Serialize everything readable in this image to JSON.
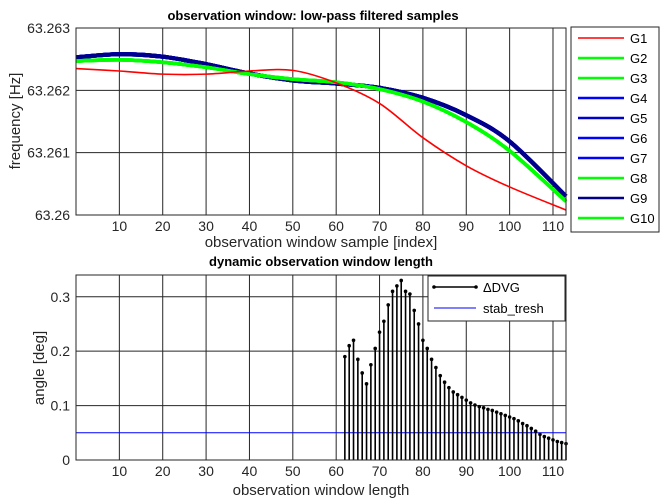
{
  "chart_data": [
    {
      "type": "line",
      "title": "observation window: low-pass filtered samples",
      "xlabel": "observation window sample [index]",
      "ylabel": "frequency [Hz]",
      "xlim": [
        0,
        113
      ],
      "ylim": [
        63.26,
        63.263
      ],
      "xticks": [
        10,
        20,
        30,
        40,
        50,
        60,
        70,
        80,
        90,
        100,
        110
      ],
      "yticks": [
        63.26,
        63.261,
        63.262,
        63.263
      ],
      "ytick_labels": [
        "63.26",
        "63.261",
        "63.262",
        "63.263"
      ],
      "grid": true,
      "legend_position": "outside-right",
      "series": [
        {
          "name": "G1",
          "color": "#ff0000",
          "x": [
            0,
            10,
            20,
            30,
            40,
            50,
            60,
            70,
            80,
            90,
            100,
            113
          ],
          "y": [
            63.26235,
            63.26231,
            63.26226,
            63.26226,
            63.26231,
            63.26232,
            63.26212,
            63.26179,
            63.26124,
            63.26079,
            63.26045,
            63.26008
          ]
        },
        {
          "name": "G2",
          "color": "#00ff00",
          "x": [
            0,
            10,
            20,
            30,
            40,
            50,
            60,
            70,
            80,
            90,
            100,
            113
          ],
          "y": [
            63.26247,
            63.26249,
            63.26245,
            63.26237,
            63.26226,
            63.26218,
            63.26213,
            63.26202,
            63.26182,
            63.26149,
            63.26103,
            63.26022
          ]
        },
        {
          "name": "G3",
          "color": "#00ff00",
          "x": [
            0,
            10,
            20,
            30,
            40,
            50,
            60,
            70,
            80,
            90,
            100,
            113
          ],
          "y": [
            63.26247,
            63.26249,
            63.26245,
            63.26237,
            63.26226,
            63.26218,
            63.26213,
            63.26202,
            63.26182,
            63.26149,
            63.26103,
            63.26022
          ]
        },
        {
          "name": "G4",
          "color": "#0000ff",
          "x": [
            0,
            10,
            20,
            30,
            40,
            50,
            60,
            70,
            80,
            90,
            100,
            113
          ],
          "y": [
            63.26253,
            63.26258,
            63.26254,
            63.26242,
            63.26227,
            63.26216,
            63.26211,
            63.26204,
            63.26188,
            63.2616,
            63.26118,
            63.2603
          ]
        },
        {
          "name": "G5",
          "color": "#0000cd",
          "x": [
            0,
            10,
            20,
            30,
            40,
            50,
            60,
            70,
            80,
            90,
            100,
            113
          ],
          "y": [
            63.26253,
            63.26258,
            63.26254,
            63.26242,
            63.26227,
            63.26216,
            63.26211,
            63.26204,
            63.26188,
            63.2616,
            63.26118,
            63.2603
          ]
        },
        {
          "name": "G6",
          "color": "#0000ff",
          "x": [
            0,
            10,
            20,
            30,
            40,
            50,
            60,
            70,
            80,
            90,
            100,
            113
          ],
          "y": [
            63.26253,
            63.26258,
            63.26254,
            63.26242,
            63.26227,
            63.26216,
            63.26211,
            63.26204,
            63.26188,
            63.2616,
            63.26118,
            63.2603
          ]
        },
        {
          "name": "G7",
          "color": "#0000ff",
          "x": [
            0,
            10,
            20,
            30,
            40,
            50,
            60,
            70,
            80,
            90,
            100,
            113
          ],
          "y": [
            63.26253,
            63.26258,
            63.26254,
            63.26242,
            63.26227,
            63.26216,
            63.26211,
            63.26204,
            63.26188,
            63.2616,
            63.26118,
            63.2603
          ]
        },
        {
          "name": "G8",
          "color": "#00ff00",
          "x": [
            0,
            10,
            20,
            30,
            40,
            50,
            60,
            70,
            80,
            90,
            100,
            113
          ],
          "y": [
            63.26247,
            63.26249,
            63.26245,
            63.26237,
            63.26226,
            63.26218,
            63.26213,
            63.26202,
            63.26182,
            63.26149,
            63.26103,
            63.26022
          ]
        },
        {
          "name": "G9",
          "color": "#00008b",
          "x": [
            0,
            10,
            20,
            30,
            40,
            50,
            60,
            70,
            80,
            90,
            100,
            113
          ],
          "y": [
            63.26253,
            63.26258,
            63.26254,
            63.26242,
            63.26227,
            63.26216,
            63.26211,
            63.26204,
            63.26188,
            63.2616,
            63.26118,
            63.2603
          ]
        },
        {
          "name": "G10",
          "color": "#00ff00",
          "x": [
            0,
            10,
            20,
            30,
            40,
            50,
            60,
            70,
            80,
            90,
            100,
            113
          ],
          "y": [
            63.26247,
            63.26249,
            63.26245,
            63.26237,
            63.26226,
            63.26218,
            63.26213,
            63.26202,
            63.26182,
            63.26149,
            63.26103,
            63.26022
          ]
        }
      ]
    },
    {
      "type": "stem",
      "title": "dynamic observation window length",
      "xlabel": "observation window length",
      "ylabel": "angle [deg]",
      "xlim": [
        0,
        113
      ],
      "ylim": [
        0,
        0.34
      ],
      "xticks": [
        10,
        20,
        30,
        40,
        50,
        60,
        70,
        80,
        90,
        100,
        110
      ],
      "yticks": [
        0,
        0.1,
        0.2,
        0.3
      ],
      "ytick_labels": [
        "0",
        "0.1",
        "0.2",
        "0.3"
      ],
      "grid": true,
      "legend_position": "top-right",
      "series": [
        {
          "name": "ΔDVG",
          "color": "#000000",
          "x": [
            62,
            63,
            64,
            65,
            66,
            67,
            68,
            69,
            70,
            71,
            72,
            73,
            74,
            75,
            76,
            77,
            78,
            79,
            80,
            81,
            82,
            83,
            84,
            85,
            86,
            87,
            88,
            89,
            90,
            91,
            92,
            93,
            94,
            95,
            96,
            97,
            98,
            99,
            100,
            101,
            102,
            103,
            104,
            105,
            106,
            107,
            108,
            109,
            110,
            111,
            112,
            113
          ],
          "y": [
            0.19,
            0.21,
            0.22,
            0.185,
            0.16,
            0.14,
            0.175,
            0.205,
            0.235,
            0.255,
            0.285,
            0.31,
            0.32,
            0.33,
            0.31,
            0.305,
            0.275,
            0.25,
            0.22,
            0.205,
            0.185,
            0.17,
            0.155,
            0.143,
            0.133,
            0.125,
            0.12,
            0.115,
            0.11,
            0.105,
            0.101,
            0.098,
            0.096,
            0.093,
            0.091,
            0.088,
            0.085,
            0.082,
            0.079,
            0.076,
            0.072,
            0.067,
            0.063,
            0.058,
            0.053,
            0.047,
            0.043,
            0.04,
            0.037,
            0.034,
            0.032,
            0.03
          ]
        },
        {
          "name": "stab_tresh",
          "color": "#0000ff",
          "x": [
            0,
            113
          ],
          "y": [
            0.05,
            0.05
          ]
        }
      ]
    }
  ]
}
